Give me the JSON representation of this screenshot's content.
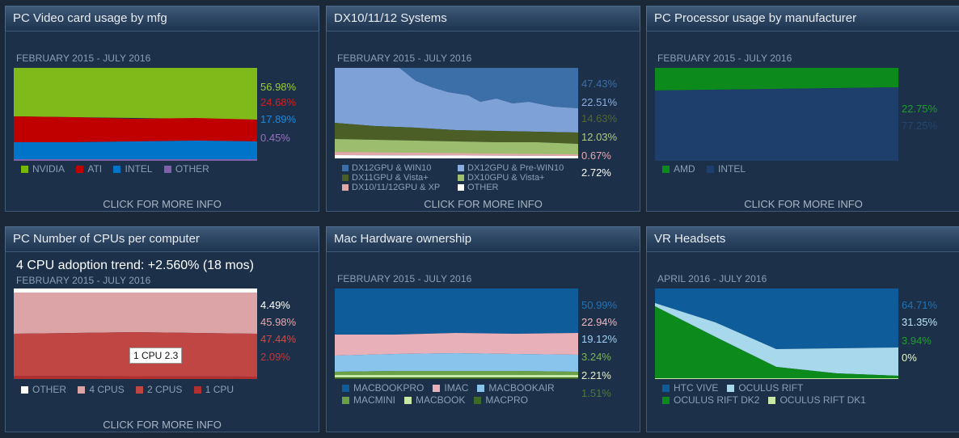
{
  "panels": [
    {
      "title": "PC Video card usage by mfg",
      "period": "FEBRUARY 2015 - JULY 2016",
      "percentages": [
        {
          "text": "56.98%",
          "color": "#9acd32"
        },
        {
          "text": "24.68%",
          "color": "#d81c1c"
        },
        {
          "text": "17.89%",
          "color": "#1a8ae0"
        },
        {
          "text": "0.45%",
          "color": "#9b6fc4"
        }
      ],
      "legend": [
        {
          "label": "NVIDIA",
          "color": "#76b900"
        },
        {
          "label": "ATI",
          "color": "#c00000"
        },
        {
          "label": "INTEL",
          "color": "#0074c8"
        },
        {
          "label": "OTHER",
          "color": "#8060a8"
        }
      ],
      "more": "CLICK FOR MORE INFO"
    },
    {
      "title": "DX10/11/12 Systems",
      "period": "FEBRUARY 2015 - JULY 2016",
      "percentages": [
        {
          "text": "47.43%",
          "color": "#3c6ea8"
        },
        {
          "text": "22.51%",
          "color": "#8aaee0"
        },
        {
          "text": "14.63%",
          "color": "#55672e"
        },
        {
          "text": "12.03%",
          "color": "#b0cc80"
        },
        {
          "text": "0.67%",
          "color": "#e8a8b0"
        },
        {
          "text": "2.72%",
          "color": "#ffffff"
        }
      ],
      "legend": [
        {
          "label": "DX12GPU & WIN10",
          "color": "#3c6ea8"
        },
        {
          "label": "DX12GPU & Pre-WIN10",
          "color": "#8aaee0"
        },
        {
          "label": "DX11GPU & Vista+",
          "color": "#4a5e26"
        },
        {
          "label": "DX10GPU & Vista+",
          "color": "#a0c070"
        },
        {
          "label": "DX10/11/12GPU & XP",
          "color": "#e0a8a8"
        },
        {
          "label": "OTHER",
          "color": "#ffffff"
        }
      ],
      "more": "CLICK FOR MORE INFO"
    },
    {
      "title": "PC Processor usage by manufacturer",
      "period": "FEBRUARY 2015 - JULY 2016",
      "percentages": [
        {
          "text": "22.75%",
          "color": "#1e9c2c"
        },
        {
          "text": "77.25%",
          "color": "#23466e"
        }
      ],
      "legend": [
        {
          "label": "AMD",
          "color": "#0c8a1c"
        },
        {
          "label": "INTEL",
          "color": "#1e3f6c"
        }
      ],
      "more": "CLICK FOR MORE INFO"
    },
    {
      "title": "PC Number of CPUs per computer",
      "trend": "4 CPU adoption trend: +2.560% (18 mos)",
      "period": "FEBRUARY 2015 - JULY 2016",
      "tooltip": "1 CPU 2.3",
      "percentages": [
        {
          "text": "4.49%",
          "color": "#ffffff"
        },
        {
          "text": "45.98%",
          "color": "#e6a8ae"
        },
        {
          "text": "47.44%",
          "color": "#cc4a48"
        },
        {
          "text": "2.09%",
          "color": "#c03838"
        }
      ],
      "legend": [
        {
          "label": "OTHER",
          "color": "#ffffff"
        },
        {
          "label": "4 CPUS",
          "color": "#dca4a6"
        },
        {
          "label": "2 CPUS",
          "color": "#c04644"
        },
        {
          "label": "1 CPU",
          "color": "#b03030"
        }
      ],
      "more": "CLICK FOR MORE INFO"
    },
    {
      "title": "Mac Hardware ownership",
      "period": "FEBRUARY 2015 - JULY 2016",
      "percentages": [
        {
          "text": "50.99%",
          "color": "#1e74b8"
        },
        {
          "text": "22.94%",
          "color": "#f0b8c0"
        },
        {
          "text": "19.12%",
          "color": "#9ed0f8"
        },
        {
          "text": "3.24%",
          "color": "#7ab458"
        },
        {
          "text": "2.21%",
          "color": "#e8f0c8"
        },
        {
          "text": "1.51%",
          "color": "#4e7a38"
        }
      ],
      "legend": [
        {
          "label": "MACBOOKPRO",
          "color": "#0e5c9a"
        },
        {
          "label": "IMAC",
          "color": "#e8b0b8"
        },
        {
          "label": "MACBOOKAIR",
          "color": "#88c4ec"
        },
        {
          "label": "MACMINI",
          "color": "#6aa048"
        },
        {
          "label": "MACBOOK",
          "color": "#c8e8a8"
        },
        {
          "label": "MACPRO",
          "color": "#3e6a28"
        }
      ],
      "more": ""
    },
    {
      "title": "VR Headsets",
      "period": "APRIL 2016 - JULY 2016",
      "percentages": [
        {
          "text": "64.71%",
          "color": "#1e74b8"
        },
        {
          "text": "31.35%",
          "color": "#bfe6f8"
        },
        {
          "text": "3.94%",
          "color": "#1ea02c"
        },
        {
          "text": "0%",
          "color": "#e8f8c8"
        }
      ],
      "legend": [
        {
          "label": "HTC VIVE",
          "color": "#0e5c9a"
        },
        {
          "label": "OCULUS RIFT",
          "color": "#a8d8ec"
        },
        {
          "label": "OCULUS RIFT DK2",
          "color": "#0c8a1c"
        },
        {
          "label": "OCULUS RIFT DK1",
          "color": "#c8e8a8"
        }
      ],
      "more": ""
    }
  ]
}
